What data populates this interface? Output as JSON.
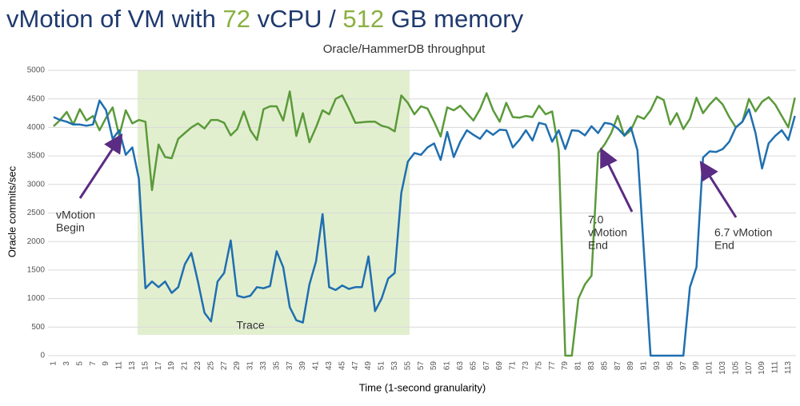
{
  "chart_data": {
    "type": "line",
    "title": [
      {
        "text": "vMotion of VM with ",
        "color": "#1f3a6e"
      },
      {
        "text": "72",
        "color": "#8ab040"
      },
      {
        "text": " vCPU / ",
        "color": "#1f3a6e"
      },
      {
        "text": "512",
        "color": "#8ab040"
      },
      {
        "text": " GB memory",
        "color": "#1f3a6e"
      }
    ],
    "subtitle": "Oracle/HammerDB throughput",
    "y_label": "Oracle commits/sec",
    "x_label": "Time (1-second granularity)",
    "annotations": {
      "begin": [
        "vMotion",
        "Begin"
      ],
      "end70": [
        "7.0",
        "vMotion",
        "End"
      ],
      "end67": [
        "6.7 vMotion",
        "End"
      ],
      "trace": "Trace"
    },
    "categories": [
      1,
      null,
      3,
      null,
      5,
      null,
      7,
      null,
      9,
      null,
      11,
      null,
      13,
      null,
      15,
      null,
      17,
      null,
      19,
      null,
      21,
      null,
      23,
      null,
      25,
      null,
      27,
      null,
      29,
      null,
      31,
      null,
      33,
      null,
      35,
      null,
      37,
      null,
      39,
      null,
      41,
      null,
      43,
      null,
      45,
      null,
      47,
      null,
      49,
      null,
      51,
      null,
      53,
      null,
      55,
      null,
      57,
      null,
      59,
      null,
      61,
      null,
      63,
      null,
      65,
      null,
      67,
      null,
      69,
      null,
      71,
      null,
      73,
      null,
      75,
      null,
      77,
      null,
      79,
      null,
      81,
      null,
      83,
      null,
      85,
      null,
      87,
      null,
      89,
      null,
      91,
      null,
      93,
      null,
      95,
      null,
      97,
      null,
      99,
      null,
      101,
      null,
      103,
      null,
      105,
      null,
      107,
      null,
      109,
      null,
      111,
      null,
      113,
      null
    ],
    "series": [
      {
        "color": "#1f6fb0",
        "values": [
          4180,
          4130,
          4100,
          4050,
          4050,
          4030,
          4050,
          4470,
          4300,
          3800,
          3950,
          3520,
          3650,
          3100,
          1180,
          1300,
          1200,
          1300,
          1100,
          1200,
          1600,
          1800,
          1300,
          750,
          600,
          1300,
          1450,
          2020,
          1050,
          1020,
          1050,
          1200,
          1180,
          1220,
          1830,
          1550,
          850,
          620,
          580,
          1250,
          1650,
          2480,
          1200,
          1150,
          1230,
          1170,
          1200,
          1200,
          1740,
          780,
          1000,
          1350,
          1450,
          2850,
          3400,
          3550,
          3520,
          3650,
          3720,
          3430,
          3920,
          3480,
          3750,
          3950,
          3870,
          3800,
          3950,
          3870,
          3960,
          3950,
          3650,
          3780,
          3950,
          3770,
          4080,
          4050,
          3750,
          3950,
          3620,
          3950,
          3940,
          3860,
          4020,
          3900,
          4080,
          4060,
          3980,
          3860,
          4000,
          3600,
          1800,
          0,
          0,
          0,
          0,
          0,
          0,
          1200,
          1550,
          3470,
          3580,
          3570,
          3620,
          3750,
          4000,
          4100,
          4320,
          3900,
          3280,
          3720,
          3850,
          3950,
          3780,
          4200
        ]
      },
      {
        "color": "#5b9a3a",
        "values": [
          4020,
          4130,
          4270,
          4050,
          4320,
          4120,
          4200,
          3950,
          4170,
          4350,
          3850,
          4300,
          4070,
          4130,
          4100,
          2900,
          3700,
          3480,
          3460,
          3800,
          3900,
          4000,
          4070,
          3980,
          4130,
          4130,
          4080,
          3860,
          3970,
          4280,
          3950,
          3780,
          4320,
          4370,
          4370,
          4120,
          4630,
          3850,
          4250,
          3740,
          4000,
          4300,
          4230,
          4500,
          4560,
          4330,
          4080,
          4090,
          4100,
          4100,
          4030,
          4000,
          3930,
          4560,
          4430,
          4230,
          4370,
          4330,
          4100,
          3840,
          4350,
          4300,
          4380,
          4250,
          4120,
          4320,
          4600,
          4300,
          4100,
          4430,
          4180,
          4170,
          4200,
          4180,
          4380,
          4230,
          4280,
          3600,
          0,
          0,
          1000,
          1250,
          1400,
          3550,
          3700,
          3900,
          4200,
          3850,
          3950,
          4200,
          4150,
          4300,
          4540,
          4480,
          4050,
          4250,
          3970,
          4150,
          4520,
          4250,
          4400,
          4520,
          4400,
          4180,
          4000,
          4100,
          4500,
          4280,
          4450,
          4530,
          4400,
          4200,
          4000,
          4520
        ]
      }
    ],
    "ylim": [
      0,
      5000
    ],
    "yticks": [
      0,
      500,
      1000,
      1500,
      2000,
      2500,
      3000,
      3500,
      4000,
      4500,
      5000
    ],
    "grid": true
  }
}
